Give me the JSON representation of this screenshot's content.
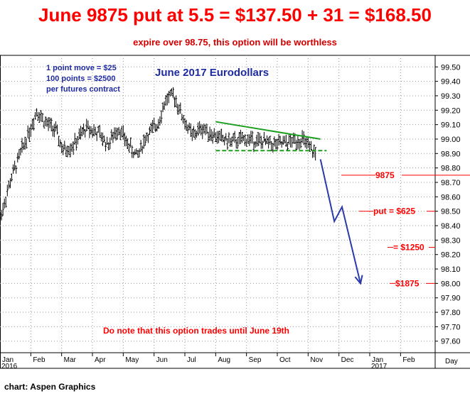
{
  "headline": "June 9875 put at 5.5 = $137.50 + 31 = $168.50",
  "subheadline": "expire over 98.75, this option will be worthless",
  "credit": "chart: Aspen Graphics",
  "chart_data": {
    "type": "candlestick",
    "title": "June 2017 Eurodollars",
    "notes": [
      "1 point move = $25",
      "100 points = $2500",
      "per futures contract"
    ],
    "footnote": "Do note that this option trades until June 19th",
    "x_unit_label": "Day",
    "x_ticks": [
      "Jan",
      "Feb",
      "Mar",
      "Apr",
      "May",
      "Jun",
      "Jul",
      "Aug",
      "Sep",
      "Oct",
      "Nov",
      "Dec",
      "Jan",
      "Feb"
    ],
    "x_year_labels": [
      {
        "index": 0,
        "label": "2016"
      },
      {
        "index": 12,
        "label": "2017"
      }
    ],
    "y_ticks": [
      "99.50",
      "99.40",
      "99.30",
      "99.20",
      "99.10",
      "99.00",
      "98.90",
      "98.80",
      "98.70",
      "98.60",
      "98.50",
      "98.40",
      "98.30",
      "98.20",
      "98.10",
      "98.00",
      "97.90",
      "97.80",
      "97.70",
      "97.60"
    ],
    "ylim": [
      97.52,
      99.58
    ],
    "grid": true,
    "price_path": [
      {
        "month": 0.0,
        "value": 98.45
      },
      {
        "month": 0.35,
        "value": 98.72
      },
      {
        "month": 0.7,
        "value": 98.92
      },
      {
        "month": 1.0,
        "value": 99.08
      },
      {
        "month": 1.2,
        "value": 99.2
      },
      {
        "month": 1.45,
        "value": 99.12
      },
      {
        "month": 1.8,
        "value": 99.06
      },
      {
        "month": 2.05,
        "value": 98.92
      },
      {
        "month": 2.4,
        "value": 98.96
      },
      {
        "month": 2.8,
        "value": 99.08
      },
      {
        "month": 3.2,
        "value": 99.04
      },
      {
        "month": 3.5,
        "value": 98.96
      },
      {
        "month": 3.85,
        "value": 99.08
      },
      {
        "month": 4.1,
        "value": 98.98
      },
      {
        "month": 4.45,
        "value": 98.88
      },
      {
        "month": 4.75,
        "value": 99.02
      },
      {
        "month": 5.1,
        "value": 99.1
      },
      {
        "month": 5.4,
        "value": 99.28
      },
      {
        "month": 5.65,
        "value": 99.3
      },
      {
        "month": 5.95,
        "value": 99.14
      },
      {
        "month": 6.25,
        "value": 99.02
      },
      {
        "month": 6.55,
        "value": 99.08
      },
      {
        "month": 7.0,
        "value": 99.02
      },
      {
        "month": 7.5,
        "value": 98.98
      },
      {
        "month": 8.0,
        "value": 99.0
      },
      {
        "month": 8.5,
        "value": 98.98
      },
      {
        "month": 9.0,
        "value": 98.96
      },
      {
        "month": 9.4,
        "value": 98.98
      },
      {
        "month": 9.8,
        "value": 99.0
      },
      {
        "month": 10.05,
        "value": 98.93
      },
      {
        "month": 10.25,
        "value": 98.9
      }
    ],
    "trendlines": [
      {
        "name": "upper",
        "color": "#1e9e1e",
        "dashed": false,
        "from": {
          "month": 7.0,
          "value": 99.12
        },
        "to": {
          "month": 10.4,
          "value": 99.0
        }
      },
      {
        "name": "lower",
        "color": "#1e9e1e",
        "dashed": true,
        "from": {
          "month": 7.0,
          "value": 98.92
        },
        "to": {
          "month": 10.6,
          "value": 98.92
        }
      }
    ],
    "projection": {
      "color": "#2a3aa8",
      "points": [
        {
          "month": 10.4,
          "value": 98.86
        },
        {
          "month": 10.85,
          "value": 98.43
        },
        {
          "month": 11.1,
          "value": 98.53
        },
        {
          "month": 11.7,
          "value": 98.0
        }
      ]
    },
    "levels": [
      {
        "label": "9875",
        "value": 98.75,
        "color": "#ff0000"
      },
      {
        "label": "put = $625",
        "value": 98.5,
        "color": "#ff0000"
      },
      {
        "label": "= $1250",
        "value": 98.25,
        "color": "#ff0000"
      },
      {
        "label": "$1875",
        "value": 98.0,
        "color": "#ff0000"
      }
    ]
  }
}
